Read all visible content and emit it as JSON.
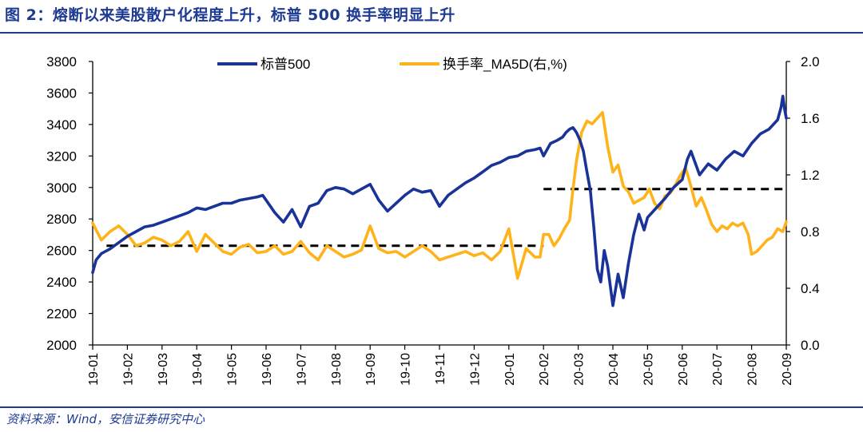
{
  "header": {
    "title": "图 2：熔断以来美股散户化程度上升，标普 500 换手率明显上升"
  },
  "footer": {
    "source": "资料来源：Wind，安信证券研究中心"
  },
  "colors": {
    "accent": "#1f3a93",
    "sp500": "#1a3399",
    "turnover": "#ffb31a",
    "reference": "#000000"
  },
  "chart_data": {
    "type": "line",
    "title": "",
    "xlabel": "",
    "ylabel": "",
    "x_ticks": [
      "19-01",
      "19-02",
      "19-03",
      "19-04",
      "19-05",
      "19-06",
      "19-07",
      "19-08",
      "19-09",
      "19-10",
      "19-11",
      "19-12",
      "20-01",
      "20-02",
      "20-03",
      "20-04",
      "20-05",
      "20-06",
      "20-07",
      "20-08",
      "20-09"
    ],
    "y_left": {
      "min": 2000,
      "max": 3800,
      "ticks": [
        2000,
        2200,
        2400,
        2600,
        2800,
        3000,
        3200,
        3400,
        3600,
        3800
      ]
    },
    "y_right": {
      "min": 0.0,
      "max": 2.0,
      "ticks": [
        "0.0",
        "0.4",
        "0.8",
        "1.2",
        "1.6",
        "2.0"
      ]
    },
    "legend_position": "top",
    "series": [
      {
        "name": "标普500",
        "axis": "left",
        "x": [
          0,
          0.1,
          0.25,
          0.5,
          0.75,
          1,
          1.25,
          1.5,
          1.75,
          2,
          2.25,
          2.5,
          2.75,
          3,
          3.25,
          3.5,
          3.75,
          4,
          4.25,
          4.5,
          4.75,
          4.9,
          5,
          5.25,
          5.5,
          5.75,
          6,
          6.25,
          6.5,
          6.75,
          7,
          7.25,
          7.5,
          7.75,
          8,
          8.25,
          8.5,
          8.75,
          9,
          9.25,
          9.5,
          9.75,
          10,
          10.25,
          10.5,
          10.75,
          11,
          11.25,
          11.5,
          11.75,
          12,
          12.25,
          12.5,
          12.75,
          12.9,
          13,
          13.2,
          13.4,
          13.55,
          13.65,
          13.75,
          13.85,
          13.95,
          14.05,
          14.15,
          14.25,
          14.35,
          14.45,
          14.55,
          14.65,
          14.75,
          14.85,
          15,
          15.15,
          15.3,
          15.45,
          15.6,
          15.75,
          15.9,
          16,
          16.25,
          16.5,
          16.75,
          17,
          17.15,
          17.25,
          17.5,
          17.75,
          18,
          18.25,
          18.5,
          18.75,
          19,
          19.25,
          19.5,
          19.75,
          19.85,
          19.9,
          19.95,
          20
        ],
        "y": [
          2460,
          2540,
          2580,
          2610,
          2650,
          2690,
          2720,
          2750,
          2760,
          2780,
          2800,
          2820,
          2840,
          2870,
          2860,
          2880,
          2900,
          2900,
          2920,
          2930,
          2940,
          2950,
          2920,
          2840,
          2780,
          2860,
          2750,
          2880,
          2900,
          2980,
          3000,
          2990,
          2960,
          2990,
          3020,
          2920,
          2850,
          2900,
          2950,
          2990,
          2970,
          2980,
          2880,
          2950,
          2990,
          3030,
          3060,
          3100,
          3140,
          3160,
          3190,
          3200,
          3230,
          3240,
          3250,
          3200,
          3280,
          3300,
          3320,
          3350,
          3370,
          3380,
          3350,
          3300,
          3230,
          3100,
          2980,
          2750,
          2480,
          2400,
          2600,
          2500,
          2250,
          2450,
          2300,
          2520,
          2700,
          2830,
          2730,
          2810,
          2870,
          2930,
          3000,
          3050,
          3180,
          3230,
          3080,
          3150,
          3110,
          3180,
          3230,
          3200,
          3280,
          3340,
          3370,
          3430,
          3510,
          3580,
          3500,
          3440
        ]
      },
      {
        "name": "换手率_MA5D(右,%)",
        "axis": "right",
        "x": [
          0,
          0.25,
          0.5,
          0.75,
          1,
          1.25,
          1.5,
          1.75,
          2,
          2.25,
          2.5,
          2.75,
          3,
          3.25,
          3.5,
          3.75,
          4,
          4.25,
          4.5,
          4.75,
          5,
          5.25,
          5.5,
          5.75,
          6,
          6.25,
          6.5,
          6.75,
          7,
          7.25,
          7.5,
          7.75,
          8,
          8.25,
          8.5,
          8.75,
          9,
          9.25,
          9.5,
          9.75,
          10,
          10.25,
          10.5,
          10.75,
          11,
          11.25,
          11.5,
          11.75,
          12,
          12.25,
          12.5,
          12.75,
          12.9,
          13,
          13.15,
          13.3,
          13.45,
          13.6,
          13.75,
          13.85,
          13.95,
          14.1,
          14.25,
          14.4,
          14.55,
          14.7,
          14.85,
          15,
          15.15,
          15.3,
          15.45,
          15.6,
          15.75,
          15.9,
          16.05,
          16.2,
          16.35,
          16.5,
          16.65,
          16.8,
          16.95,
          17.1,
          17.25,
          17.4,
          17.55,
          17.7,
          17.85,
          18,
          18.15,
          18.3,
          18.45,
          18.6,
          18.75,
          18.9,
          19,
          19.15,
          19.3,
          19.45,
          19.6,
          19.75,
          19.9,
          20
        ],
        "y": [
          0.86,
          0.74,
          0.8,
          0.84,
          0.78,
          0.7,
          0.72,
          0.76,
          0.74,
          0.7,
          0.73,
          0.8,
          0.66,
          0.78,
          0.72,
          0.66,
          0.64,
          0.69,
          0.71,
          0.65,
          0.66,
          0.7,
          0.64,
          0.66,
          0.73,
          0.65,
          0.6,
          0.7,
          0.66,
          0.62,
          0.64,
          0.67,
          0.84,
          0.68,
          0.65,
          0.66,
          0.62,
          0.66,
          0.7,
          0.66,
          0.6,
          0.62,
          0.64,
          0.66,
          0.63,
          0.65,
          0.6,
          0.66,
          0.82,
          0.47,
          0.68,
          0.62,
          0.62,
          0.78,
          0.78,
          0.7,
          0.75,
          0.82,
          0.88,
          1.1,
          1.3,
          1.5,
          1.58,
          1.56,
          1.6,
          1.64,
          1.4,
          1.22,
          1.27,
          1.12,
          1.08,
          1.0,
          1.02,
          1.04,
          1.1,
          1.0,
          0.96,
          1.05,
          1.07,
          1.13,
          1.2,
          1.25,
          1.12,
          0.98,
          1.04,
          0.95,
          0.85,
          0.8,
          0.84,
          0.82,
          0.86,
          0.84,
          0.86,
          0.78,
          0.64,
          0.66,
          0.7,
          0.74,
          0.76,
          0.82,
          0.8,
          0.87
        ]
      }
    ],
    "reference_lines": [
      {
        "axis": "right",
        "value": 0.7,
        "x_start": 0.4,
        "x_end": 13.0,
        "style": "dashed"
      },
      {
        "axis": "right",
        "value": 1.1,
        "x_start": 13.0,
        "x_end": 20.0,
        "style": "dashed"
      }
    ]
  }
}
